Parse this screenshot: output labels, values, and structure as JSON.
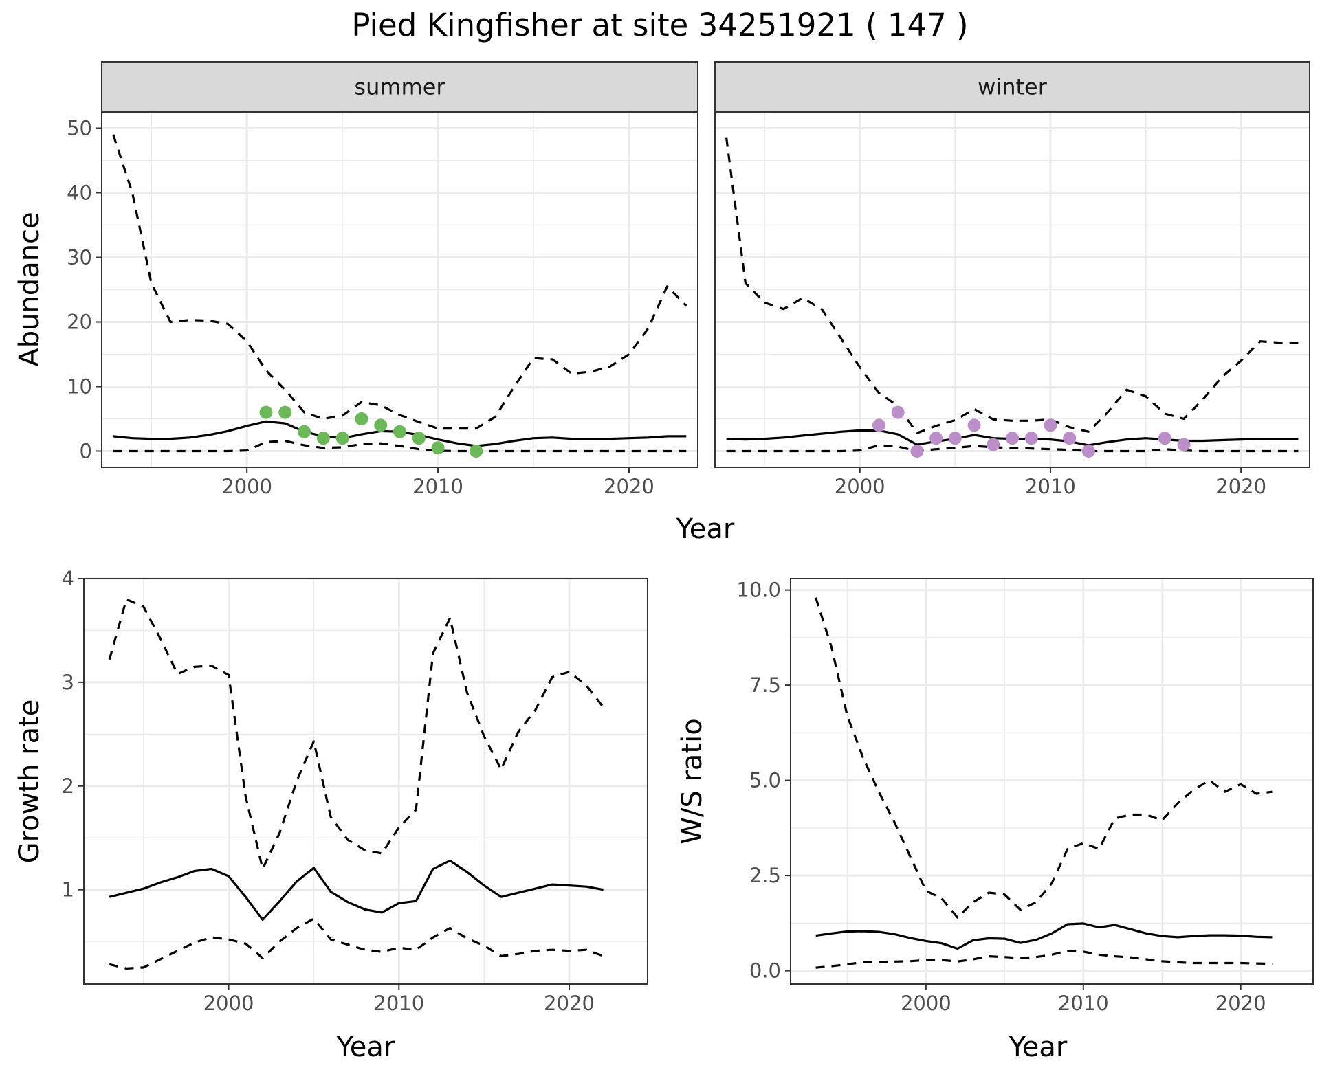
{
  "figure_title": "Pied Kingfisher at site 34251921 ( 147 )",
  "colors": {
    "summer_points": "#6ab857",
    "winter_points": "#bb8ec9",
    "line": "#000000",
    "grid": "#ebebeb",
    "strip_fill": "#d9d9d9"
  },
  "chart_data": [
    {
      "type": "line",
      "panel": "summer",
      "strip_label": "summer",
      "xlabel": "Year",
      "ylabel": "Abundance",
      "xlim": [
        1992.4,
        2023.6
      ],
      "ylim": [
        -2.5,
        52.5
      ],
      "xticks": [
        2000,
        2010,
        2020
      ],
      "yticks": [
        0,
        10,
        20,
        30,
        40,
        50
      ],
      "x": [
        1993,
        1994,
        1995,
        1996,
        1997,
        1998,
        1999,
        2000,
        2001,
        2002,
        2003,
        2004,
        2005,
        2006,
        2007,
        2008,
        2009,
        2010,
        2011,
        2012,
        2013,
        2014,
        2015,
        2016,
        2017,
        2018,
        2019,
        2020,
        2021,
        2022,
        2023
      ],
      "series": [
        {
          "style": "solid",
          "values": [
            2.3,
            2.0,
            1.9,
            1.9,
            2.1,
            2.5,
            3.1,
            3.9,
            4.6,
            4.3,
            3.0,
            2.3,
            2.0,
            2.6,
            3.1,
            3.0,
            2.5,
            1.8,
            1.2,
            0.8,
            1.1,
            1.6,
            2.0,
            2.1,
            1.9,
            1.9,
            1.9,
            2.0,
            2.1,
            2.3,
            2.3
          ]
        },
        {
          "style": "dashed",
          "values": [
            49,
            40,
            26,
            20,
            20.3,
            20.2,
            19.7,
            17,
            12.5,
            9.5,
            6,
            5,
            5.5,
            7.6,
            7.1,
            5.6,
            4.5,
            3.5,
            3.5,
            3.5,
            5.3,
            10,
            14.4,
            14.2,
            12,
            12.3,
            13.1,
            15,
            19,
            25.5,
            22.5
          ]
        },
        {
          "style": "dashed",
          "values": [
            0,
            0,
            0,
            0,
            0,
            0,
            0,
            0.1,
            1.4,
            1.6,
            0.9,
            0.5,
            0.6,
            1.1,
            1.2,
            0.8,
            0.3,
            0.05,
            0,
            0,
            0,
            0,
            0,
            0,
            0,
            0,
            0,
            0,
            0,
            0,
            0
          ]
        }
      ],
      "points": {
        "x": [
          2001,
          2002,
          2003,
          2004,
          2005,
          2006,
          2007,
          2008,
          2009,
          2010,
          2012
        ],
        "y": [
          6,
          6,
          3,
          2,
          2,
          5,
          4,
          3,
          2,
          0.5,
          0
        ]
      }
    },
    {
      "type": "line",
      "panel": "winter",
      "strip_label": "winter",
      "xlabel": "Year",
      "ylabel": "Abundance",
      "xlim": [
        1992.4,
        2023.6
      ],
      "ylim": [
        -2.5,
        52.5
      ],
      "xticks": [
        2000,
        2010,
        2020
      ],
      "yticks": [
        0,
        10,
        20,
        30,
        40,
        50
      ],
      "x": [
        1993,
        1994,
        1995,
        1996,
        1997,
        1998,
        1999,
        2000,
        2001,
        2002,
        2003,
        2004,
        2005,
        2006,
        2007,
        2008,
        2009,
        2010,
        2011,
        2012,
        2013,
        2014,
        2015,
        2016,
        2017,
        2018,
        2019,
        2020,
        2021,
        2022,
        2023
      ],
      "series": [
        {
          "style": "solid",
          "values": [
            1.9,
            1.8,
            1.9,
            2.1,
            2.4,
            2.7,
            3.0,
            3.2,
            3.2,
            2.6,
            1.0,
            1.5,
            1.9,
            2.5,
            2.0,
            1.9,
            1.9,
            1.8,
            1.5,
            0.9,
            1.4,
            1.8,
            2.0,
            1.8,
            1.6,
            1.6,
            1.7,
            1.8,
            1.9,
            1.9,
            1.9
          ]
        },
        {
          "style": "dashed",
          "values": [
            48.5,
            26,
            23,
            22,
            23.7,
            22,
            17.5,
            13,
            9,
            7,
            2.8,
            3.9,
            4.8,
            6.5,
            4.9,
            4.7,
            4.7,
            4.9,
            3.7,
            3,
            6,
            9.5,
            8.5,
            5.8,
            5,
            8,
            11.5,
            14,
            17,
            16.8,
            16.8
          ]
        },
        {
          "style": "dashed",
          "values": [
            0,
            0,
            0,
            0,
            0,
            0,
            0,
            0.1,
            0.9,
            0.7,
            0,
            0.3,
            0.5,
            0.8,
            0.6,
            0.5,
            0.4,
            0.3,
            0.2,
            0,
            0,
            0,
            0,
            0.3,
            0.1,
            0,
            0,
            0,
            0,
            0,
            0
          ]
        }
      ],
      "points": {
        "x": [
          2001,
          2002,
          2003,
          2004,
          2005,
          2006,
          2007,
          2008,
          2009,
          2010,
          2011,
          2012,
          2016,
          2017
        ],
        "y": [
          4,
          6,
          0,
          2,
          2,
          4,
          1,
          2,
          2,
          4,
          2,
          0,
          2,
          1
        ]
      }
    },
    {
      "type": "line",
      "panel": "growth",
      "xlabel": "Year",
      "ylabel": "Growth rate",
      "xlim": [
        1991.5,
        2024.6
      ],
      "ylim": [
        0.09,
        4.0
      ],
      "xticks": [
        2000,
        2010,
        2020
      ],
      "yticks": [
        1,
        2,
        3,
        4
      ],
      "x": [
        1993,
        1994,
        1995,
        1996,
        1997,
        1998,
        1999,
        2000,
        2001,
        2002,
        2003,
        2004,
        2005,
        2006,
        2007,
        2008,
        2009,
        2010,
        2011,
        2012,
        2013,
        2014,
        2015,
        2016,
        2017,
        2018,
        2019,
        2020,
        2021,
        2022
      ],
      "series": [
        {
          "style": "solid",
          "values": [
            0.93,
            0.97,
            1.01,
            1.07,
            1.12,
            1.18,
            1.2,
            1.13,
            0.93,
            0.71,
            0.89,
            1.08,
            1.21,
            0.98,
            0.88,
            0.81,
            0.78,
            0.87,
            0.89,
            1.2,
            1.28,
            1.17,
            1.04,
            0.93,
            0.97,
            1.01,
            1.05,
            1.04,
            1.03,
            1.0
          ]
        },
        {
          "style": "dashed",
          "values": [
            3.22,
            3.8,
            3.73,
            3.42,
            3.08,
            3.15,
            3.16,
            3.07,
            1.9,
            1.2,
            1.55,
            2.05,
            2.43,
            1.7,
            1.48,
            1.38,
            1.35,
            1.6,
            1.77,
            3.28,
            3.62,
            2.9,
            2.48,
            2.16,
            2.52,
            2.73,
            3.05,
            3.1,
            2.97,
            2.76
          ]
        },
        {
          "style": "dashed",
          "values": [
            0.28,
            0.24,
            0.25,
            0.33,
            0.41,
            0.49,
            0.54,
            0.52,
            0.48,
            0.34,
            0.5,
            0.63,
            0.72,
            0.52,
            0.47,
            0.42,
            0.4,
            0.44,
            0.42,
            0.54,
            0.63,
            0.53,
            0.46,
            0.36,
            0.38,
            0.41,
            0.42,
            0.41,
            0.42,
            0.36
          ]
        }
      ]
    },
    {
      "type": "line",
      "panel": "ratio",
      "xlabel": "Year",
      "ylabel": "W/S ratio",
      "xlim": [
        1991.4,
        2024.6
      ],
      "ylim": [
        -0.35,
        10.3
      ],
      "xticks": [
        2000,
        2010,
        2020
      ],
      "yticks": [
        0.0,
        2.5,
        5.0,
        7.5,
        10.0
      ],
      "ytick_labels": [
        "0.0",
        "2.5",
        "5.0",
        "7.5",
        "10.0"
      ],
      "x": [
        1993,
        1994,
        1995,
        1996,
        1997,
        1998,
        1999,
        2000,
        2001,
        2002,
        2003,
        2004,
        2005,
        2006,
        2007,
        2008,
        2009,
        2010,
        2011,
        2012,
        2013,
        2014,
        2015,
        2016,
        2017,
        2018,
        2019,
        2020,
        2021,
        2022
      ],
      "series": [
        {
          "style": "solid",
          "values": [
            0.92,
            0.98,
            1.03,
            1.04,
            1.02,
            0.96,
            0.86,
            0.78,
            0.72,
            0.58,
            0.8,
            0.85,
            0.84,
            0.73,
            0.81,
            0.98,
            1.22,
            1.24,
            1.14,
            1.2,
            1.09,
            0.98,
            0.91,
            0.88,
            0.91,
            0.93,
            0.93,
            0.92,
            0.89,
            0.88
          ]
        },
        {
          "style": "dashed",
          "values": [
            9.8,
            8.5,
            6.7,
            5.6,
            4.7,
            3.9,
            3.0,
            2.1,
            1.9,
            1.4,
            1.8,
            2.05,
            2.0,
            1.6,
            1.8,
            2.3,
            3.2,
            3.35,
            3.2,
            4.0,
            4.1,
            4.1,
            3.95,
            4.4,
            4.75,
            5.0,
            4.7,
            4.9,
            4.65,
            4.7
          ]
        },
        {
          "style": "dashed",
          "values": [
            0.08,
            0.12,
            0.17,
            0.22,
            0.22,
            0.24,
            0.25,
            0.28,
            0.28,
            0.24,
            0.3,
            0.38,
            0.36,
            0.33,
            0.36,
            0.42,
            0.52,
            0.5,
            0.42,
            0.38,
            0.35,
            0.3,
            0.25,
            0.22,
            0.2,
            0.2,
            0.2,
            0.2,
            0.19,
            0.18
          ]
        }
      ]
    }
  ]
}
